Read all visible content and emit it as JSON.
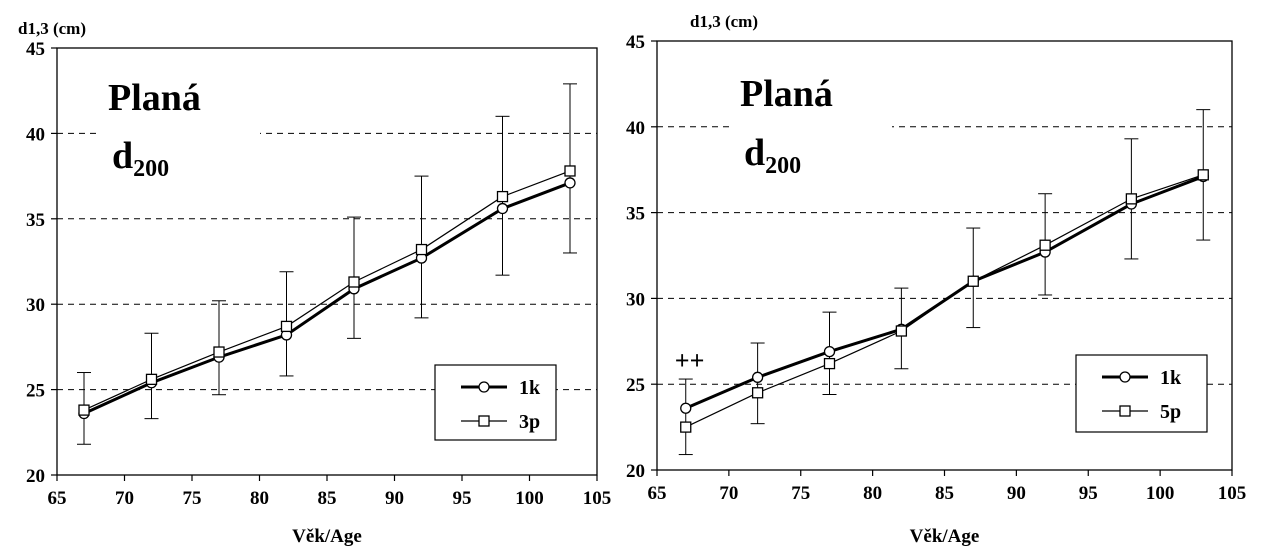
{
  "chart_data": [
    {
      "type": "line",
      "ylabel": "d1,3 (cm)",
      "xlabel": "Věk/Age",
      "xlim": [
        65,
        105
      ],
      "ylim": [
        20,
        45
      ],
      "xticks": [
        "65",
        "70",
        "75",
        "80",
        "85",
        "90",
        "95",
        "100",
        "105"
      ],
      "yticks": [
        "20",
        "25",
        "30",
        "35",
        "40",
        "45"
      ],
      "grid": "horizontal-dashed",
      "annotation": {
        "main": "Planá",
        "d": "d",
        "sub": "200"
      },
      "legend_position": "bottom-right",
      "x": [
        67,
        72,
        77,
        82,
        87,
        92,
        98,
        103
      ],
      "series": [
        {
          "name": "1k",
          "marker": "circle",
          "line": "thick",
          "values": [
            23.6,
            25.4,
            26.9,
            28.2,
            30.9,
            32.7,
            35.6,
            37.1
          ]
        },
        {
          "name": "3p",
          "marker": "square",
          "line": "thin",
          "values": [
            23.8,
            25.6,
            27.2,
            28.7,
            31.3,
            33.2,
            36.3,
            37.8
          ],
          "error_low": [
            21.8,
            23.3,
            24.7,
            25.8,
            28.0,
            29.2,
            31.7,
            33.0
          ],
          "error_high": [
            26.0,
            28.3,
            30.2,
            31.9,
            35.1,
            37.5,
            41.0,
            42.9
          ]
        }
      ],
      "significance": []
    },
    {
      "type": "line",
      "ylabel": "d1,3 (cm)",
      "xlabel": "Věk/Age",
      "xlim": [
        65,
        105
      ],
      "ylim": [
        20,
        45
      ],
      "xticks": [
        "65",
        "70",
        "75",
        "80",
        "85",
        "90",
        "95",
        "100",
        "105"
      ],
      "yticks": [
        "20",
        "25",
        "30",
        "35",
        "40",
        "45"
      ],
      "grid": "horizontal-dashed",
      "annotation": {
        "main": "Planá",
        "d": "d",
        "sub": "200"
      },
      "legend_position": "bottom-right",
      "x": [
        67,
        72,
        77,
        82,
        87,
        92,
        98,
        103
      ],
      "series": [
        {
          "name": "1k",
          "marker": "circle",
          "line": "thick",
          "values": [
            23.6,
            25.4,
            26.9,
            28.2,
            31.0,
            32.7,
            35.5,
            37.1
          ]
        },
        {
          "name": "5p",
          "marker": "square",
          "line": "thin",
          "values": [
            22.5,
            24.5,
            26.2,
            28.1,
            31.0,
            33.1,
            35.8,
            37.2
          ],
          "error_low": [
            20.9,
            22.7,
            24.4,
            25.9,
            28.3,
            30.2,
            32.3,
            33.4
          ],
          "error_high": [
            25.3,
            27.4,
            29.2,
            30.6,
            34.1,
            36.1,
            39.3,
            41.0
          ]
        }
      ],
      "significance": [
        {
          "x": 67,
          "label": "++"
        }
      ]
    }
  ]
}
